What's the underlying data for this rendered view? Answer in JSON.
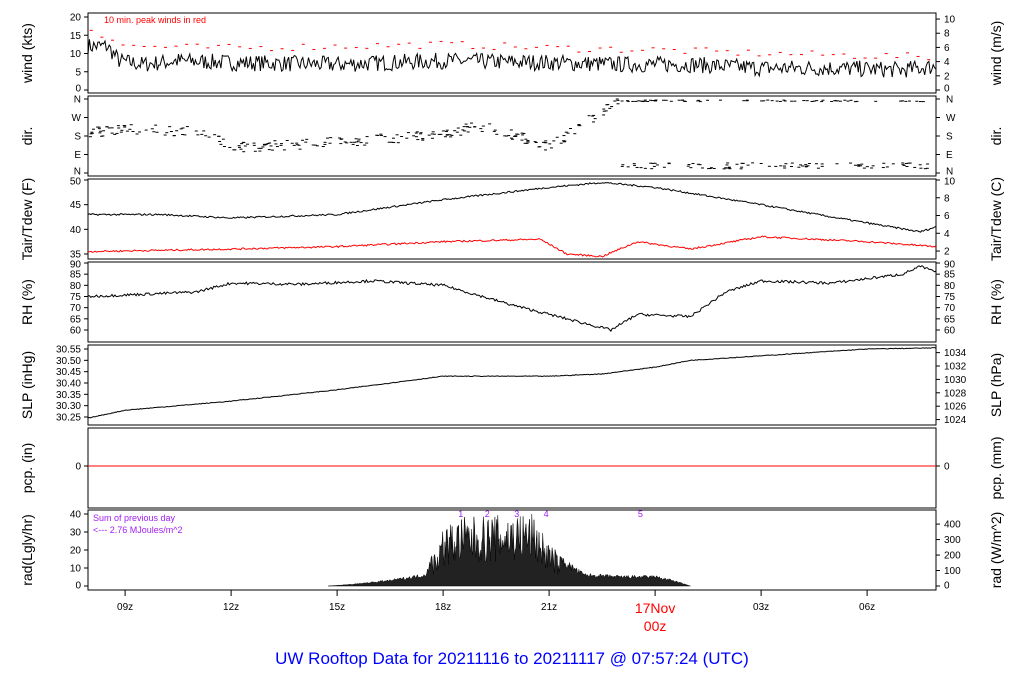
{
  "title": "UW Rooftop Data for 20211116  to  20211117 @ 07:57:24  (UTC)",
  "x_axis": {
    "range": [
      "16/07:57",
      "17/07:57"
    ],
    "ticks": [
      {
        "t": "16/09:00",
        "label": "09z"
      },
      {
        "t": "16/12:00",
        "label": "12z"
      },
      {
        "t": "16/15:00",
        "label": "15z"
      },
      {
        "t": "16/18:00",
        "label": "18z"
      },
      {
        "t": "16/21:00",
        "label": "21z"
      },
      {
        "t": "17/03:00",
        "label": "03z"
      },
      {
        "t": "17/06:00",
        "label": "06z"
      }
    ],
    "day_label": {
      "t": "17/00:00",
      "line1": "17Nov",
      "line2": "00z",
      "color": "#ff0000"
    }
  },
  "colors": {
    "main": "#000000",
    "dewpoint": "#ff0000",
    "peak": "#ff0000",
    "annotation": "#a020f0",
    "title": "#0000ff"
  },
  "chart_data": [
    {
      "type": "line",
      "id": "wind",
      "ylabel": "wind (kts)",
      "ylabel_right": "wind (m/s)",
      "ylim": [
        0,
        20
      ],
      "yticks": [
        0,
        5,
        10,
        15,
        20
      ],
      "right_ylim_ms": [
        0,
        10.29
      ],
      "right_ticks": [
        0,
        2,
        4,
        6,
        8,
        10
      ],
      "annotation": "10 min. peak winds in red",
      "series": [
        {
          "name": "wind",
          "x": [
            "16/07:57",
            "16/08:30",
            "16/08:50",
            "16/09:30",
            "16/10:30",
            "16/12:00",
            "16/15:00",
            "16/18:00",
            "16/21:00",
            "16/23:00",
            "17/01:00",
            "17/03:00",
            "17/05:00",
            "17/07:00",
            "17/07:57"
          ],
          "y": [
            12,
            12,
            8,
            7,
            8,
            7.5,
            7,
            8,
            7.5,
            7,
            7,
            6,
            6,
            5.5,
            6.5
          ]
        },
        {
          "name": "peak",
          "x": [
            "16/07:57",
            "16/09:00",
            "16/12:00",
            "16/18:00",
            "16/21:00",
            "17/00:00",
            "17/03:00",
            "17/07:57"
          ],
          "y": [
            17,
            12,
            11.5,
            12.5,
            11.5,
            11,
            10,
            9
          ]
        }
      ]
    },
    {
      "type": "scatter",
      "id": "dir",
      "ylabel": "dir.",
      "ylim": [
        0,
        360
      ],
      "yticks": [
        {
          "v": 0,
          "l": "N"
        },
        {
          "v": 90,
          "l": "E"
        },
        {
          "v": 180,
          "l": "S"
        },
        {
          "v": 270,
          "l": "W"
        },
        {
          "v": 360,
          "l": "N"
        }
      ],
      "series": [
        {
          "name": "dir",
          "x": [
            "16/07:57",
            "16/09:00",
            "16/11:00",
            "16/12:00",
            "16/15:00",
            "16/18:00",
            "16/19:00",
            "16/21:00",
            "16/22:00",
            "16/22:45",
            "16/23:00",
            "17/07:57"
          ],
          "y": [
            195,
            215,
            200,
            125,
            150,
            190,
            230,
            130,
            250,
            330,
            360,
            360
          ]
        }
      ]
    },
    {
      "type": "line",
      "id": "temp",
      "ylabel": "Tair/Tdew (F)",
      "ylabel_right": "Tair/Tdew (C)",
      "ylim": [
        34,
        50
      ],
      "yticks": [
        35,
        40,
        45,
        50
      ],
      "right_ticks": [
        2,
        4,
        6,
        8,
        10
      ],
      "series": [
        {
          "name": "Tair",
          "x": [
            "16/07:57",
            "16/10:00",
            "16/12:00",
            "16/15:00",
            "16/18:00",
            "16/21:00",
            "16/22:30",
            "17/00:00",
            "17/03:00",
            "17/05:00",
            "17/07:30",
            "17/07:57"
          ],
          "y": [
            43,
            43,
            42.3,
            43,
            46,
            48.5,
            49.5,
            48.5,
            45,
            42.5,
            39.5,
            40.5
          ]
        },
        {
          "name": "Tdew",
          "x": [
            "16/07:57",
            "16/12:00",
            "16/15:00",
            "16/18:00",
            "16/20:45",
            "16/21:30",
            "16/22:30",
            "16/23:30",
            "17/01:00",
            "17/03:00",
            "17/06:00",
            "17/07:57"
          ],
          "y": [
            35.5,
            36,
            36.5,
            37.5,
            38,
            35,
            34.5,
            37.5,
            36,
            38.5,
            37.5,
            36.5
          ]
        }
      ]
    },
    {
      "type": "line",
      "id": "rh",
      "ylabel": "RH (%)",
      "ylabel_right": "RH (%)",
      "ylim": [
        57,
        90
      ],
      "yticks": [
        60,
        65,
        70,
        75,
        80,
        85,
        90
      ],
      "series": [
        {
          "name": "RH",
          "x": [
            "16/07:57",
            "16/11:00",
            "16/12:00",
            "16/14:00",
            "16/16:00",
            "16/18:00",
            "16/20:00",
            "16/21:30",
            "16/22:45",
            "16/23:30",
            "17/01:00",
            "17/02:00",
            "17/03:00",
            "17/05:00",
            "17/07:00",
            "17/07:30",
            "17/07:57"
          ],
          "y": [
            75,
            77,
            81,
            80.5,
            82,
            80,
            71,
            65,
            60,
            67,
            66,
            77,
            82,
            81,
            85,
            88.5,
            86
          ]
        }
      ]
    },
    {
      "type": "line",
      "id": "slp",
      "ylabel": "SLP (inHg)",
      "ylabel_right": "SLP (hPa)",
      "ylim": [
        30.23,
        30.56
      ],
      "yticks": [
        30.25,
        30.3,
        30.35,
        30.4,
        30.45,
        30.5,
        30.55
      ],
      "right_ticks": [
        1024,
        1026,
        1028,
        1030,
        1032,
        1034
      ],
      "series": [
        {
          "name": "SLP",
          "x": [
            "16/07:57",
            "16/09:00",
            "16/12:00",
            "16/15:00",
            "16/18:00",
            "16/21:00",
            "16/22:30",
            "17/00:00",
            "17/01:00",
            "17/03:00",
            "17/06:00",
            "17/07:57"
          ],
          "y": [
            30.245,
            30.28,
            30.32,
            30.37,
            30.43,
            30.43,
            30.44,
            30.47,
            30.5,
            30.52,
            30.55,
            30.555
          ]
        }
      ]
    },
    {
      "type": "line",
      "id": "pcp",
      "ylabel": "pcp. (in)",
      "ylabel_right": "pcp. (mm)",
      "ylim": [
        -0.1,
        0.1
      ],
      "yticks": [
        0
      ],
      "right_ticks": [
        0
      ],
      "series": [
        {
          "name": "pcp",
          "x": [
            "16/07:57",
            "17/07:57"
          ],
          "y": [
            0,
            0
          ]
        }
      ]
    },
    {
      "type": "area",
      "id": "rad",
      "ylabel": "rad(Lgly/hr)",
      "ylabel_right": "rad (W/m^2)",
      "ylim": [
        0,
        40
      ],
      "yticks": [
        0,
        10,
        20,
        30,
        40
      ],
      "right_ticks": [
        0,
        100,
        200,
        300,
        400
      ],
      "annotation_line1": "Sum of previous day",
      "annotation_line2": "<--- 2.76 MJoules/m^2",
      "markers": [
        {
          "t": "16/18:30",
          "label": "1"
        },
        {
          "t": "16/19:15",
          "label": "2"
        },
        {
          "t": "16/20:05",
          "label": "3"
        },
        {
          "t": "16/20:55",
          "label": "4"
        },
        {
          "t": "16/23:35",
          "label": "5"
        }
      ],
      "series": [
        {
          "name": "rad",
          "x": [
            "16/14:45",
            "16/15:30",
            "16/16:30",
            "16/17:30",
            "16/18:00",
            "16/18:30",
            "16/19:30",
            "16/20:30",
            "16/21:00",
            "16/21:30",
            "16/22:00",
            "16/23:00",
            "17/00:00",
            "17/00:30",
            "17/01:00"
          ],
          "y": [
            0,
            1,
            3,
            6,
            30,
            35,
            36,
            38,
            22,
            12,
            6,
            5,
            5,
            3,
            0
          ]
        }
      ]
    }
  ]
}
